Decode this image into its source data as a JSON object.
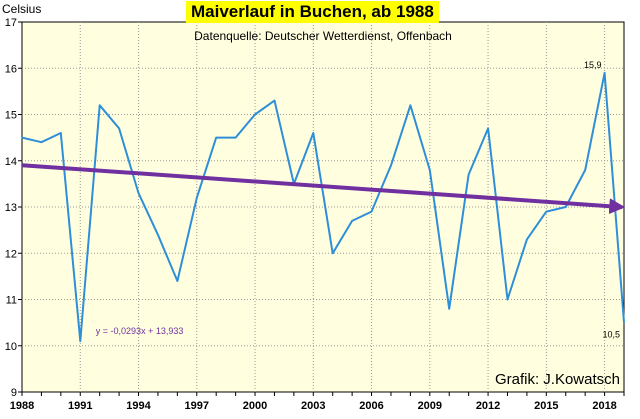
{
  "chart_data": {
    "type": "line",
    "title": "Maiverlauf in Buchen, ab 1988",
    "subtitle": "Datenquelle: Deutscher Wetterdienst, Offenbach",
    "ylabel": "Celsius",
    "xlabel": "",
    "credit": "Grafik: J.Kowatsch",
    "xlim": [
      1988,
      2019
    ],
    "ylim": [
      9,
      17
    ],
    "x_ticks": [
      1988,
      1991,
      1994,
      1997,
      2000,
      2003,
      2006,
      2009,
      2012,
      2015,
      2018
    ],
    "y_ticks": [
      9,
      10,
      11,
      12,
      13,
      14,
      15,
      16,
      17
    ],
    "grid": true,
    "x": [
      1988,
      1989,
      1990,
      1991,
      1992,
      1993,
      1994,
      1995,
      1996,
      1997,
      1998,
      1999,
      2000,
      2001,
      2002,
      2003,
      2004,
      2005,
      2006,
      2007,
      2008,
      2009,
      2010,
      2011,
      2012,
      2013,
      2014,
      2015,
      2016,
      2017,
      2018,
      2019
    ],
    "series": [
      {
        "values": [
          14.5,
          14.4,
          14.6,
          10.1,
          15.2,
          14.7,
          13.3,
          12.4,
          11.4,
          13.2,
          14.5,
          14.5,
          15.0,
          15.3,
          13.5,
          14.6,
          12.0,
          12.7,
          12.9,
          13.9,
          15.2,
          13.8,
          10.8,
          13.7,
          14.7,
          11.0,
          12.3,
          12.9,
          13.0,
          13.8,
          15.9,
          10.5
        ],
        "color": "#2e8fd8"
      }
    ],
    "trendline": {
      "equation": "y = -0,0293x + 13,933",
      "slope": -0.0293,
      "intercept": 13.933,
      "color": "#7030a0"
    },
    "point_labels": [
      {
        "x": 2018,
        "text": "15,9"
      },
      {
        "x": 2019,
        "text": "10,5"
      }
    ],
    "colors": {
      "plot_background": "#ffffe0",
      "grid": "#9a9a9a",
      "title_background": "#ffff00",
      "line": "#2e8fd8",
      "trend": "#7030a0"
    }
  }
}
